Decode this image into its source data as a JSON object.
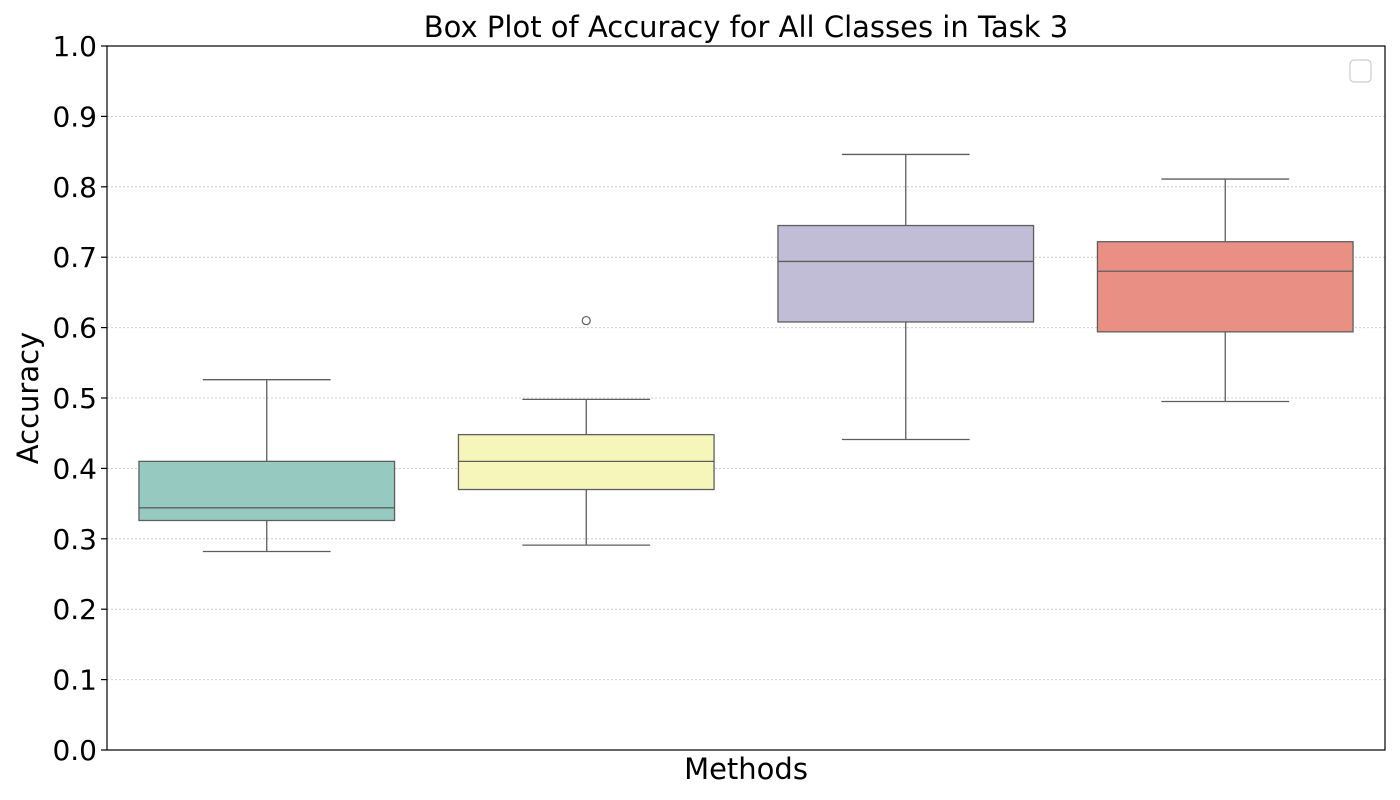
{
  "chart_data": {
    "type": "box",
    "title": "Box Plot of Accuracy for All Classes in Task 3",
    "xlabel": "Methods",
    "ylabel": "Accuracy",
    "ylim": [
      0,
      1.0
    ],
    "yticks": [
      "0.0",
      "0.1",
      "0.2",
      "0.3",
      "0.4",
      "0.5",
      "0.6",
      "0.7",
      "0.8",
      "0.9",
      "1.0"
    ],
    "grid": "y",
    "legend": "top-right (empty)",
    "boxes": [
      {
        "whisker_low": 0.282,
        "q1": 0.326,
        "median": 0.344,
        "q3": 0.41,
        "whisker_high": 0.526,
        "outliers": [],
        "color": "#96c9bf"
      },
      {
        "whisker_low": 0.291,
        "q1": 0.37,
        "median": 0.41,
        "q3": 0.448,
        "whisker_high": 0.498,
        "outliers": [
          0.61
        ],
        "color": "#f6f6bb"
      },
      {
        "whisker_low": 0.441,
        "q1": 0.608,
        "median": 0.694,
        "q3": 0.745,
        "whisker_high": 0.846,
        "outliers": [],
        "color": "#c1bdd6"
      },
      {
        "whisker_low": 0.495,
        "q1": 0.594,
        "median": 0.68,
        "q3": 0.722,
        "whisker_high": 0.811,
        "outliers": [],
        "color": "#ea8f83"
      }
    ]
  }
}
